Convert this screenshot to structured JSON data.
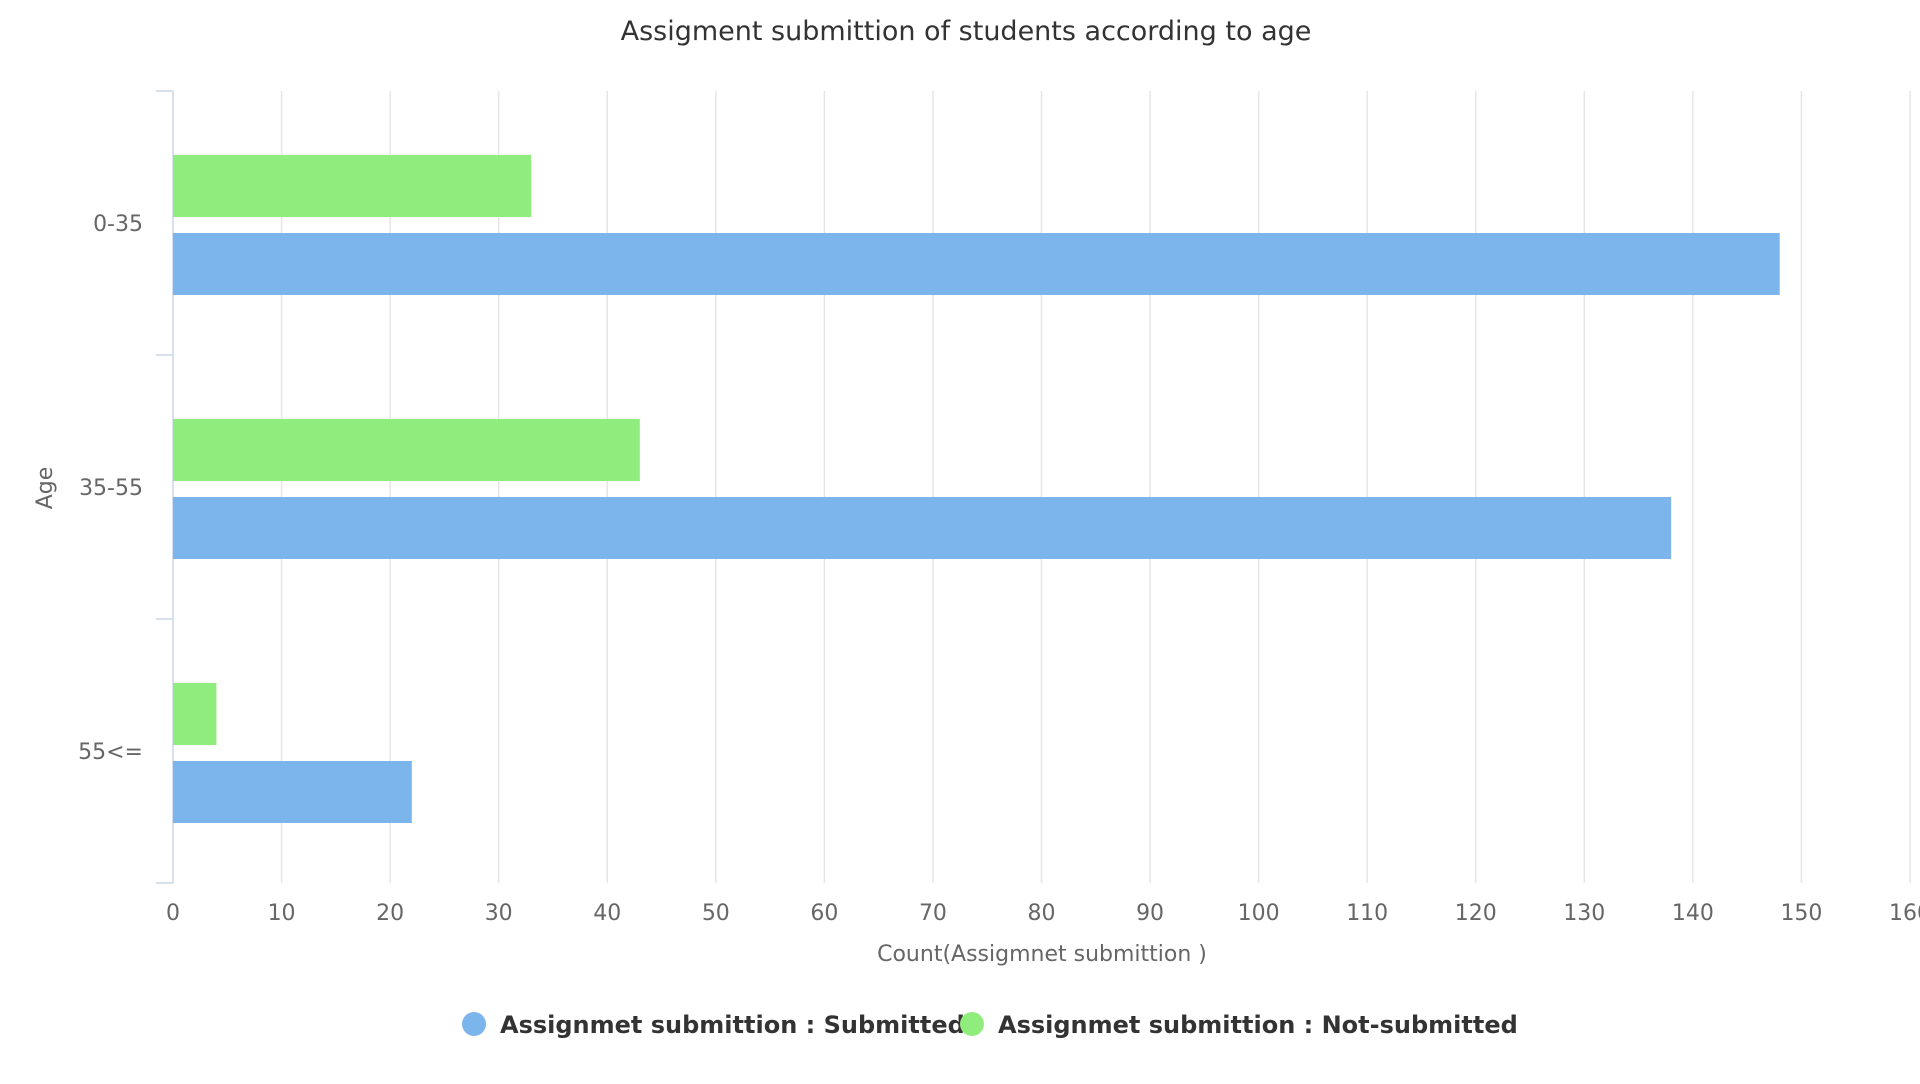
{
  "chart_data": {
    "type": "bar",
    "orientation": "horizontal",
    "title": "Assigment submittion of students according to age",
    "xlabel": "Count(Assigmnet submittion )",
    "ylabel": "Age",
    "categories": [
      "0-35",
      "35-55",
      "55<="
    ],
    "xlim": [
      0,
      160
    ],
    "x_ticks": [
      0,
      10,
      20,
      30,
      40,
      50,
      60,
      70,
      80,
      90,
      100,
      110,
      120,
      130,
      140,
      150,
      160
    ],
    "grid": true,
    "legend_position": "bottom",
    "series": [
      {
        "name": "Assignmet submittion : Submitted",
        "color": "#7cb5ec",
        "values": [
          148,
          138,
          22
        ]
      },
      {
        "name": "Assignmet submittion : Not-submitted",
        "color": "#90ed7d",
        "values": [
          33,
          43,
          4
        ]
      }
    ]
  }
}
